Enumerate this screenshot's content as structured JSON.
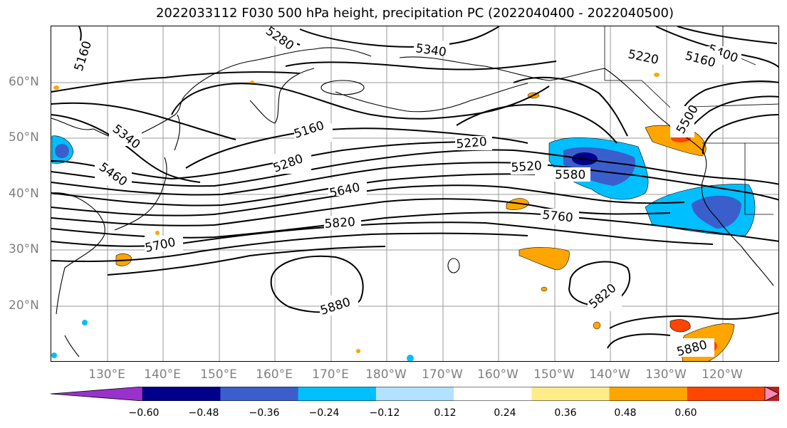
{
  "title": "2022033112 F030 500 hPa height, precipitation PC (2022040400 - 2022040500)",
  "lat_labels": [
    "60°N",
    "50°N",
    "40°N",
    "30°N",
    "20°N"
  ],
  "lon_labels": [
    "130°E",
    "140°E",
    "150°E",
    "160°E",
    "170°E",
    "180°W",
    "170°W",
    "160°W",
    "150°W",
    "140°W",
    "130°W",
    "120°W"
  ],
  "contour_labels": [
    "5160",
    "5280",
    "5340",
    "5400",
    "5220",
    "5160",
    "5340",
    "5460",
    "5160",
    "5280",
    "5220",
    "5500",
    "5520",
    "5580",
    "5640",
    "5700",
    "5760",
    "5820",
    "5880",
    "5820",
    "5880"
  ],
  "colorbar": {
    "colors": [
      "#9932cc",
      "#00008b",
      "#3a5fcd",
      "#00bfff",
      "#b2e2ff",
      "#ffffff",
      "#ffeb8a",
      "#ffa500",
      "#ff4500",
      "#b22222",
      "#ff88b0"
    ],
    "tick_labels": [
      "−0.60",
      "−0.48",
      "−0.36",
      "−0.24",
      "−0.12",
      "0.12",
      "0.24",
      "0.36",
      "0.48",
      "0.60"
    ]
  }
}
